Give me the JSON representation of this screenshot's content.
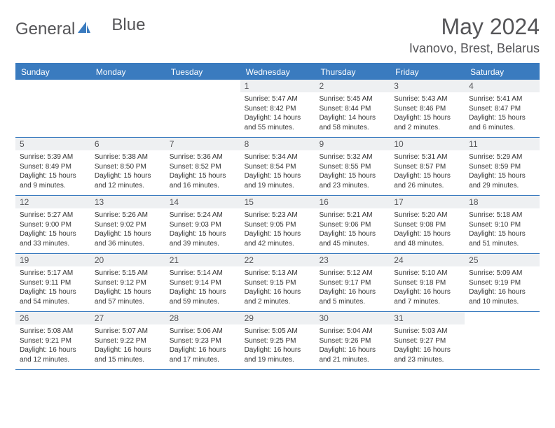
{
  "logo": {
    "text_part1": "General",
    "text_part2": "Blue"
  },
  "header": {
    "title": "May 2024",
    "location": "Ivanovo, Brest, Belarus"
  },
  "colors": {
    "brand_blue": "#3a7bbf",
    "header_bg": "#eef0f2",
    "text_gray": "#555558",
    "body_text": "#333333",
    "white": "#ffffff"
  },
  "weekdays": [
    "Sunday",
    "Monday",
    "Tuesday",
    "Wednesday",
    "Thursday",
    "Friday",
    "Saturday"
  ],
  "weeks": [
    [
      null,
      null,
      null,
      {
        "d": "1",
        "sunrise": "5:47 AM",
        "sunset": "8:42 PM",
        "daylight": "14 hours and 55 minutes."
      },
      {
        "d": "2",
        "sunrise": "5:45 AM",
        "sunset": "8:44 PM",
        "daylight": "14 hours and 58 minutes."
      },
      {
        "d": "3",
        "sunrise": "5:43 AM",
        "sunset": "8:46 PM",
        "daylight": "15 hours and 2 minutes."
      },
      {
        "d": "4",
        "sunrise": "5:41 AM",
        "sunset": "8:47 PM",
        "daylight": "15 hours and 6 minutes."
      }
    ],
    [
      {
        "d": "5",
        "sunrise": "5:39 AM",
        "sunset": "8:49 PM",
        "daylight": "15 hours and 9 minutes."
      },
      {
        "d": "6",
        "sunrise": "5:38 AM",
        "sunset": "8:50 PM",
        "daylight": "15 hours and 12 minutes."
      },
      {
        "d": "7",
        "sunrise": "5:36 AM",
        "sunset": "8:52 PM",
        "daylight": "15 hours and 16 minutes."
      },
      {
        "d": "8",
        "sunrise": "5:34 AM",
        "sunset": "8:54 PM",
        "daylight": "15 hours and 19 minutes."
      },
      {
        "d": "9",
        "sunrise": "5:32 AM",
        "sunset": "8:55 PM",
        "daylight": "15 hours and 23 minutes."
      },
      {
        "d": "10",
        "sunrise": "5:31 AM",
        "sunset": "8:57 PM",
        "daylight": "15 hours and 26 minutes."
      },
      {
        "d": "11",
        "sunrise": "5:29 AM",
        "sunset": "8:59 PM",
        "daylight": "15 hours and 29 minutes."
      }
    ],
    [
      {
        "d": "12",
        "sunrise": "5:27 AM",
        "sunset": "9:00 PM",
        "daylight": "15 hours and 33 minutes."
      },
      {
        "d": "13",
        "sunrise": "5:26 AM",
        "sunset": "9:02 PM",
        "daylight": "15 hours and 36 minutes."
      },
      {
        "d": "14",
        "sunrise": "5:24 AM",
        "sunset": "9:03 PM",
        "daylight": "15 hours and 39 minutes."
      },
      {
        "d": "15",
        "sunrise": "5:23 AM",
        "sunset": "9:05 PM",
        "daylight": "15 hours and 42 minutes."
      },
      {
        "d": "16",
        "sunrise": "5:21 AM",
        "sunset": "9:06 PM",
        "daylight": "15 hours and 45 minutes."
      },
      {
        "d": "17",
        "sunrise": "5:20 AM",
        "sunset": "9:08 PM",
        "daylight": "15 hours and 48 minutes."
      },
      {
        "d": "18",
        "sunrise": "5:18 AM",
        "sunset": "9:10 PM",
        "daylight": "15 hours and 51 minutes."
      }
    ],
    [
      {
        "d": "19",
        "sunrise": "5:17 AM",
        "sunset": "9:11 PM",
        "daylight": "15 hours and 54 minutes."
      },
      {
        "d": "20",
        "sunrise": "5:15 AM",
        "sunset": "9:12 PM",
        "daylight": "15 hours and 57 minutes."
      },
      {
        "d": "21",
        "sunrise": "5:14 AM",
        "sunset": "9:14 PM",
        "daylight": "15 hours and 59 minutes."
      },
      {
        "d": "22",
        "sunrise": "5:13 AM",
        "sunset": "9:15 PM",
        "daylight": "16 hours and 2 minutes."
      },
      {
        "d": "23",
        "sunrise": "5:12 AM",
        "sunset": "9:17 PM",
        "daylight": "16 hours and 5 minutes."
      },
      {
        "d": "24",
        "sunrise": "5:10 AM",
        "sunset": "9:18 PM",
        "daylight": "16 hours and 7 minutes."
      },
      {
        "d": "25",
        "sunrise": "5:09 AM",
        "sunset": "9:19 PM",
        "daylight": "16 hours and 10 minutes."
      }
    ],
    [
      {
        "d": "26",
        "sunrise": "5:08 AM",
        "sunset": "9:21 PM",
        "daylight": "16 hours and 12 minutes."
      },
      {
        "d": "27",
        "sunrise": "5:07 AM",
        "sunset": "9:22 PM",
        "daylight": "16 hours and 15 minutes."
      },
      {
        "d": "28",
        "sunrise": "5:06 AM",
        "sunset": "9:23 PM",
        "daylight": "16 hours and 17 minutes."
      },
      {
        "d": "29",
        "sunrise": "5:05 AM",
        "sunset": "9:25 PM",
        "daylight": "16 hours and 19 minutes."
      },
      {
        "d": "30",
        "sunrise": "5:04 AM",
        "sunset": "9:26 PM",
        "daylight": "16 hours and 21 minutes."
      },
      {
        "d": "31",
        "sunrise": "5:03 AM",
        "sunset": "9:27 PM",
        "daylight": "16 hours and 23 minutes."
      },
      null
    ]
  ],
  "labels": {
    "sunrise": "Sunrise:",
    "sunset": "Sunset:",
    "daylight": "Daylight:"
  }
}
